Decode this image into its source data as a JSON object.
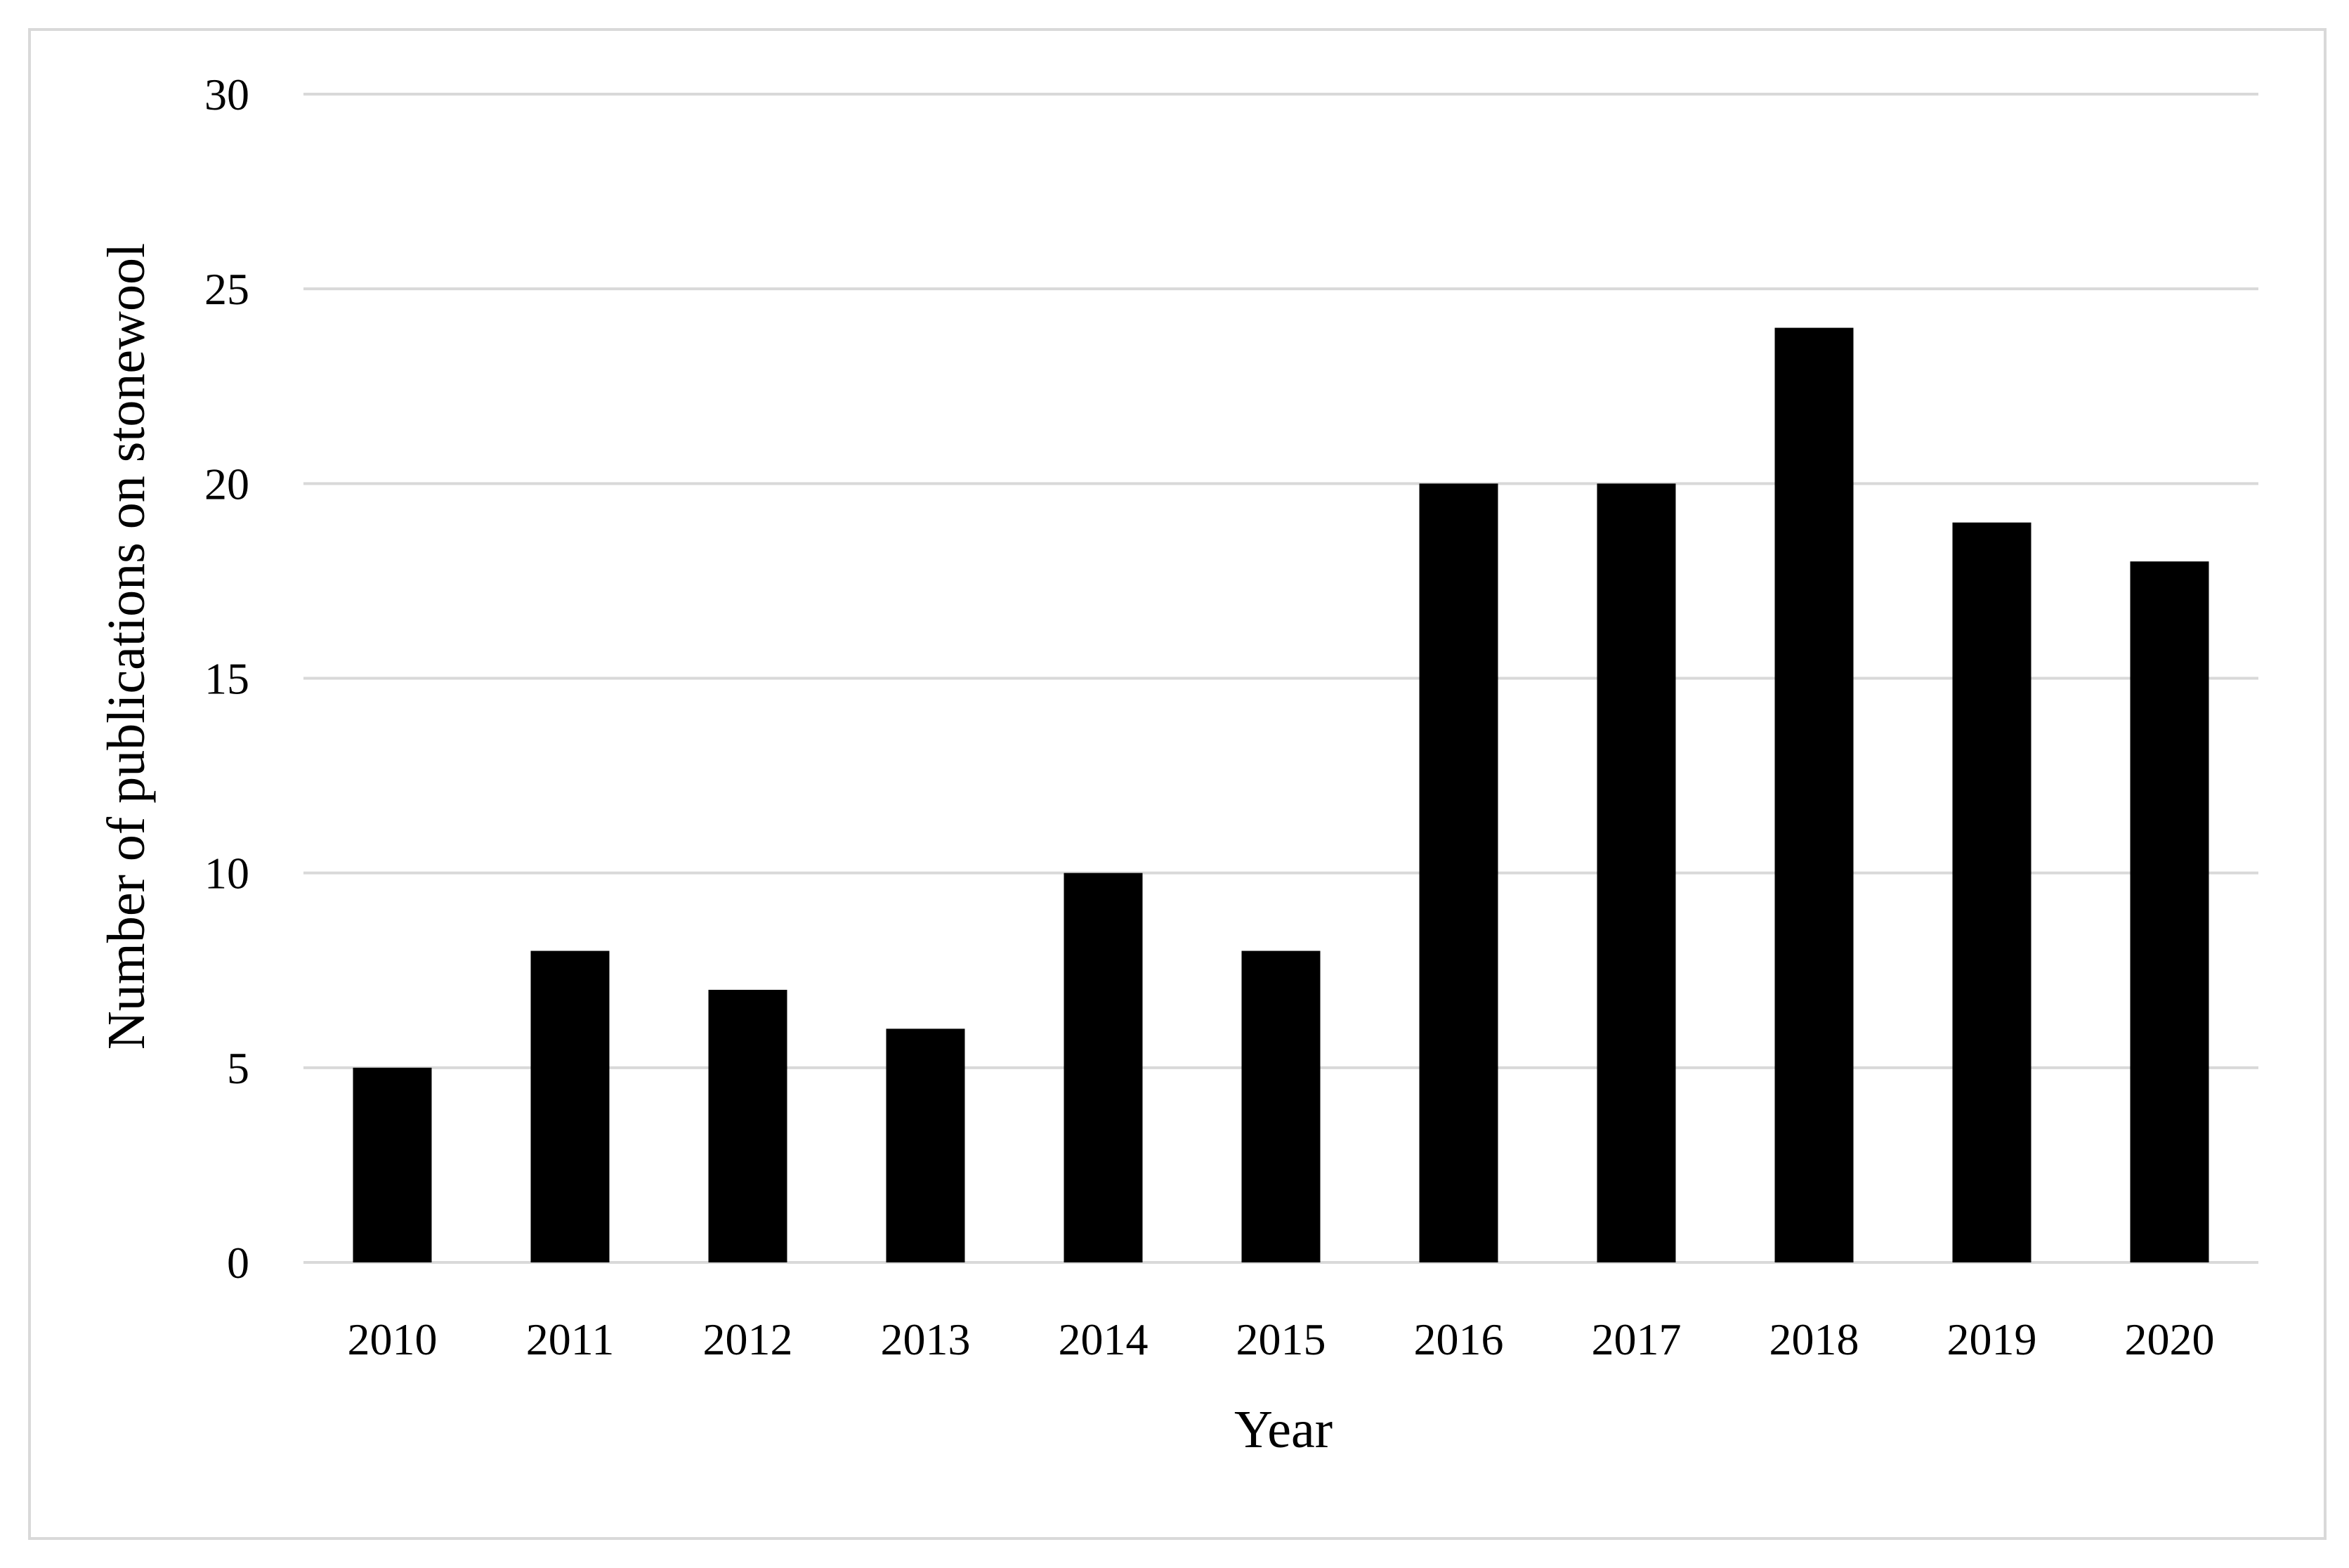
{
  "chart_data": {
    "type": "bar",
    "title": "",
    "xlabel": "Year",
    "ylabel": "Number of publications on stonewool",
    "categories": [
      "2010",
      "2011",
      "2012",
      "2013",
      "2014",
      "2015",
      "2016",
      "2017",
      "2018",
      "2019",
      "2020"
    ],
    "values": [
      5,
      8,
      7,
      6,
      10,
      8,
      20,
      20,
      24,
      19,
      18
    ],
    "ylim": [
      0,
      30
    ],
    "yticks": [
      "0",
      "5",
      "10",
      "15",
      "20",
      "25",
      "30"
    ],
    "grid": true,
    "legend": "none",
    "colors": {
      "bar": "#000000",
      "grid": "#d9d9d9",
      "frame": "#d9d9d9"
    }
  }
}
